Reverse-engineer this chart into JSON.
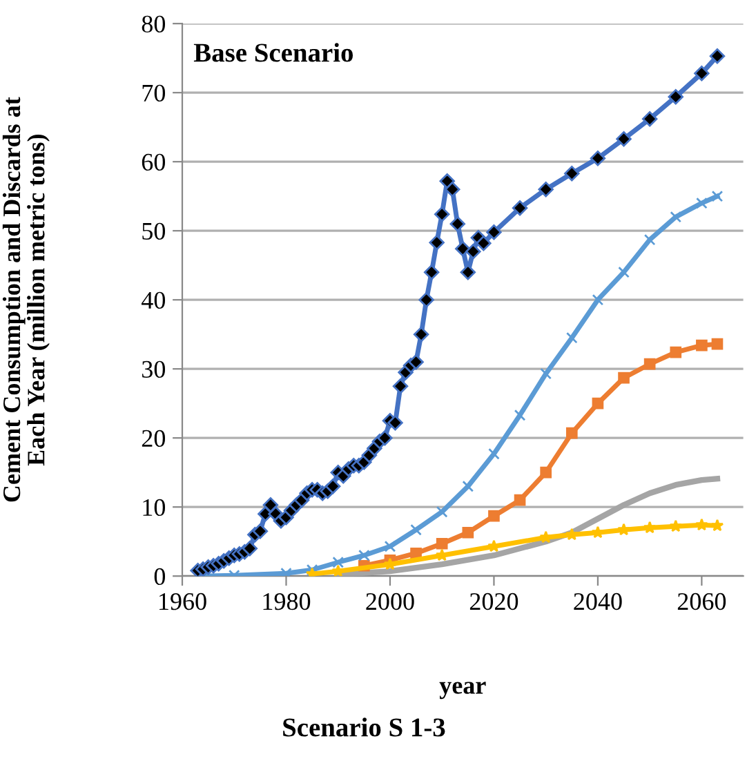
{
  "chart_data": {
    "type": "line",
    "xlabel": "year",
    "ylabel": "Cement Consumption and Discards at Each Year (million metric tons)",
    "annotations": [
      "Base Scenario",
      "Scenario S 1-3"
    ],
    "xlim": [
      1960,
      2068
    ],
    "xticks": [
      1960,
      1980,
      2000,
      2020,
      2040,
      2060
    ],
    "ylim": [
      0,
      80
    ],
    "yticks": [
      0,
      10,
      20,
      30,
      40,
      50,
      60,
      70,
      80
    ],
    "grid": "y",
    "series": [
      {
        "color": "#4472c4",
        "marker": "diamond",
        "x": [
          1963,
          1964,
          1965,
          1966,
          1967,
          1968,
          1969,
          1970,
          1971,
          1972,
          1973,
          1974,
          1975,
          1976,
          1977,
          1978,
          1979,
          1980,
          1981,
          1982,
          1983,
          1984,
          1985,
          1986,
          1987,
          1988,
          1989,
          1990,
          1991,
          1992,
          1993,
          1994,
          1995,
          1996,
          1997,
          1998,
          1999,
          2000,
          2001,
          2002,
          2003,
          2004,
          2005,
          2006,
          2007,
          2008,
          2009,
          2010,
          2011,
          2012,
          2013,
          2014,
          2015,
          2016,
          2017,
          2018,
          2020,
          2025,
          2030,
          2035,
          2040,
          2045,
          2050,
          2055,
          2060,
          2063
        ],
        "values": [
          0.8,
          1,
          1.3,
          1.5,
          1.8,
          2.2,
          2.6,
          3,
          3.2,
          3.5,
          4,
          6,
          6.5,
          9,
          10.3,
          9,
          8,
          8.5,
          9.5,
          10.3,
          11,
          12,
          12.5,
          12.5,
          12,
          12.3,
          13,
          15,
          14.5,
          15.5,
          16,
          16,
          16.5,
          17.5,
          18.5,
          19.5,
          20,
          22.5,
          22.2,
          27.5,
          29.5,
          30.5,
          31,
          35,
          40,
          44,
          48.3,
          52.4,
          57.2,
          56,
          51,
          47.4,
          44,
          47,
          49,
          48.2,
          49.8,
          53.3,
          56,
          58.3,
          60.5,
          63.3,
          66.2,
          69.4,
          72.8,
          75.3
        ]
      },
      {
        "color": "#5b9bd5",
        "marker": "cross",
        "x": [
          1963,
          1970,
          1980,
          1985,
          1990,
          1995,
          2000,
          2005,
          2010,
          2015,
          2020,
          2025,
          2030,
          2035,
          2040,
          2045,
          2050,
          2055,
          2060,
          2063
        ],
        "values": [
          0,
          0.1,
          0.4,
          0.9,
          2,
          3,
          4.3,
          6.7,
          9.3,
          13,
          17.7,
          23.3,
          29.3,
          34.5,
          40,
          44,
          48.7,
          52,
          54,
          55
        ]
      },
      {
        "color": "#ed7d31",
        "marker": "square",
        "x": [
          1995,
          2000,
          2005,
          2010,
          2015,
          2020,
          2025,
          2030,
          2035,
          2040,
          2045,
          2050,
          2055,
          2060,
          2063
        ],
        "values": [
          1.5,
          2.3,
          3.3,
          4.7,
          6.3,
          8.7,
          11,
          15,
          20.7,
          25,
          28.7,
          30.7,
          32.4,
          33.4,
          33.6
        ]
      },
      {
        "color": "#a5a5a5",
        "marker": "none",
        "x": [
          1990,
          2000,
          2010,
          2020,
          2030,
          2035,
          2040,
          2045,
          2050,
          2055,
          2060,
          2063
        ],
        "values": [
          0.2,
          0.7,
          1.7,
          3,
          5,
          6.3,
          8.3,
          10.3,
          12,
          13.2,
          13.9,
          14.1
        ]
      },
      {
        "color": "#ffc000",
        "marker": "star",
        "x": [
          1985,
          1990,
          2000,
          2010,
          2020,
          2030,
          2035,
          2040,
          2045,
          2050,
          2055,
          2060,
          2063
        ],
        "values": [
          0.3,
          0.7,
          1.7,
          3,
          4.3,
          5.6,
          6,
          6.3,
          6.7,
          7,
          7.2,
          7.4,
          7.3
        ]
      }
    ]
  }
}
